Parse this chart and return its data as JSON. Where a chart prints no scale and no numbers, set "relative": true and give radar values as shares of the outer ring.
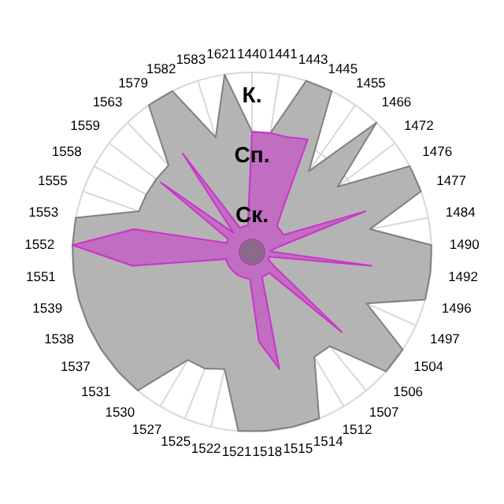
{
  "chart_data": {
    "type": "radar",
    "relative": true,
    "grid": true,
    "legend": false,
    "categories": [
      "1440",
      "1441",
      "1443",
      "1445",
      "1455",
      "1466",
      "1472",
      "1476",
      "1477",
      "1484",
      "1490",
      "1492",
      "1496",
      "1497",
      "1504",
      "1506",
      "1507",
      "1512",
      "1514",
      "1515",
      "1518",
      "1521",
      "1522",
      "1525",
      "1527",
      "1530",
      "1531",
      "1537",
      "1538",
      "1539",
      "1551",
      "1552",
      "1553",
      "1555",
      "1558",
      "1559",
      "1563",
      "1579",
      "1582",
      "1583",
      "1621"
    ],
    "series": [
      {
        "color": "#b4b4b4",
        "values": [
          0.67,
          0.67,
          1,
          1,
          0.55,
          1,
          0.6,
          1,
          1,
          0.67,
          1,
          1,
          1,
          0.7,
          1,
          1,
          0.68,
          0.68,
          1,
          1,
          1,
          1,
          0.67,
          0.7,
          0.7,
          1,
          1,
          1,
          1,
          1,
          1,
          1,
          1,
          0.67,
          0.67,
          0.67,
          0.67,
          1,
          1,
          0.67,
          1
        ]
      },
      {
        "color": "#cc33cc",
        "values": [
          0.67,
          0.67,
          0.67,
          0.7,
          0.3,
          0.2,
          0.2,
          0.2,
          0.67,
          0.15,
          0.1,
          0.67,
          0.1,
          0.1,
          0.15,
          0.67,
          0.15,
          0.15,
          0.15,
          0.67,
          0.5,
          0.15,
          0.15,
          0.15,
          0.15,
          0.15,
          0.15,
          0.15,
          0.15,
          0.15,
          0.67,
          1,
          0.67,
          0.15,
          0.15,
          0.64,
          0.15,
          0.67,
          0.15,
          0.15,
          0.15
        ]
      }
    ],
    "annotations": [
      "К.",
      "Сп.",
      "Ск."
    ]
  }
}
